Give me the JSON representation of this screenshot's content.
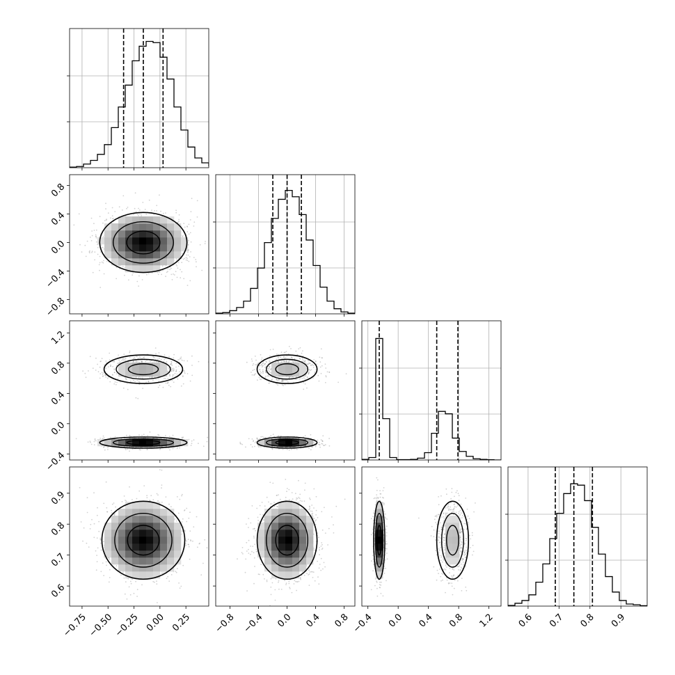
{
  "chart_data": {
    "type": "corner",
    "description_of_layout": "",
    "variables": [
      {
        "index": 0,
        "range": [
          -0.87,
          0.47
        ],
        "ticks": [
          -0.75,
          -0.5,
          -0.25,
          0.0,
          0.25
        ],
        "tick_labels": [
          "−0.75",
          "−0.50",
          "−0.25",
          "0.00",
          "0.25"
        ],
        "quantiles": [
          -0.35,
          -0.16,
          0.03
        ],
        "histogram": {
          "edges_start": -0.87,
          "bin_width": 0.067,
          "counts": [
            0.5,
            1,
            3,
            6,
            11,
            19,
            33,
            50,
            68,
            88,
            100,
            104,
            103,
            91,
            73,
            50,
            31,
            17,
            8,
            4,
            1.5,
            0.5
          ],
          "ymax": 110
        }
      },
      {
        "index": 1,
        "range": [
          -1.0,
          0.95
        ],
        "ticks": [
          -0.8,
          -0.4,
          0.0,
          0.4,
          0.8
        ],
        "tick_labels": [
          "−0.8",
          "−0.4",
          "0.0",
          "0.4",
          "0.8"
        ],
        "quantiles": [
          -0.2,
          0.0,
          0.2
        ],
        "histogram": {
          "edges_start": -1.0,
          "bin_width": 0.0975,
          "counts": [
            0.5,
            1,
            2.5,
            5,
            10,
            20,
            36,
            56,
            75,
            90,
            97,
            92,
            78,
            58,
            38,
            21,
            10,
            4,
            1.5,
            0.5
          ],
          "ymax": 105
        }
      },
      {
        "index": 2,
        "range": [
          -0.48,
          1.36
        ],
        "ticks": [
          -0.4,
          0.0,
          0.4,
          0.8,
          1.2
        ],
        "tick_labels": [
          "−0.4",
          "0.0",
          "0.4",
          "0.8",
          "1.2"
        ],
        "quantiles": [
          -0.25,
          0.51,
          0.79
        ],
        "histogram": {
          "edges_start": -0.48,
          "bin_width": 0.092,
          "counts": [
            0.5,
            2,
            100,
            34,
            2,
            0.3,
            0.3,
            0.5,
            1.5,
            6,
            22,
            40,
            38,
            18,
            7,
            3,
            1,
            0.5,
            0.2,
            0
          ],
          "ymax": 110
        }
      },
      {
        "index": 3,
        "range": [
          0.535,
          0.985
        ],
        "ticks": [
          0.6,
          0.7,
          0.8,
          0.9
        ],
        "tick_labels": [
          "0.6",
          "0.7",
          "0.8",
          "0.9"
        ],
        "quantiles": [
          0.688,
          0.748,
          0.808
        ],
        "histogram": {
          "edges_start": 0.535,
          "bin_width": 0.0225,
          "counts": [
            0.5,
            2,
            4,
            8,
            17,
            30,
            48,
            66,
            80,
            87,
            86,
            75,
            56,
            37,
            21,
            10,
            4,
            1.5,
            1,
            0.3
          ],
          "ymax": 95
        }
      }
    ],
    "pairs": [
      {
        "row": 1,
        "col": 0,
        "blobs": [
          {
            "cx": -0.16,
            "cy": 0.0,
            "sx": 0.2,
            "sy": 0.2,
            "rot": 0,
            "weight": 1.0
          }
        ]
      },
      {
        "row": 2,
        "col": 0,
        "blobs": [
          {
            "cx": -0.16,
            "cy": 0.72,
            "sx": 0.18,
            "sy": 0.09,
            "rot": 0,
            "weight": 0.45
          },
          {
            "cx": -0.16,
            "cy": -0.25,
            "sx": 0.2,
            "sy": 0.035,
            "rot": 0,
            "weight": 0.55
          }
        ]
      },
      {
        "row": 2,
        "col": 1,
        "blobs": [
          {
            "cx": 0.0,
            "cy": 0.72,
            "sx": 0.2,
            "sy": 0.09,
            "rot": 0,
            "weight": 0.45
          },
          {
            "cx": 0.0,
            "cy": -0.25,
            "sx": 0.2,
            "sy": 0.035,
            "rot": 0,
            "weight": 0.55
          }
        ]
      },
      {
        "row": 3,
        "col": 0,
        "blobs": [
          {
            "cx": -0.16,
            "cy": 0.748,
            "sx": 0.19,
            "sy": 0.06,
            "rot": 0,
            "weight": 1.0
          }
        ]
      },
      {
        "row": 3,
        "col": 1,
        "blobs": [
          {
            "cx": 0.0,
            "cy": 0.748,
            "sx": 0.2,
            "sy": 0.06,
            "rot": 0,
            "weight": 1.0
          }
        ]
      },
      {
        "row": 3,
        "col": 2,
        "blobs": [
          {
            "cx": -0.25,
            "cy": 0.748,
            "sx": 0.035,
            "sy": 0.06,
            "rot": 0,
            "weight": 0.55
          },
          {
            "cx": 0.72,
            "cy": 0.748,
            "sx": 0.1,
            "sy": 0.06,
            "rot": 0,
            "weight": 0.45
          }
        ]
      }
    ],
    "grid": true,
    "contour_levels": 3,
    "colors": {
      "line": "#000000",
      "scatter": "#9a9a9a",
      "grid": "#b0b0b0",
      "density_max": "#000000"
    }
  }
}
